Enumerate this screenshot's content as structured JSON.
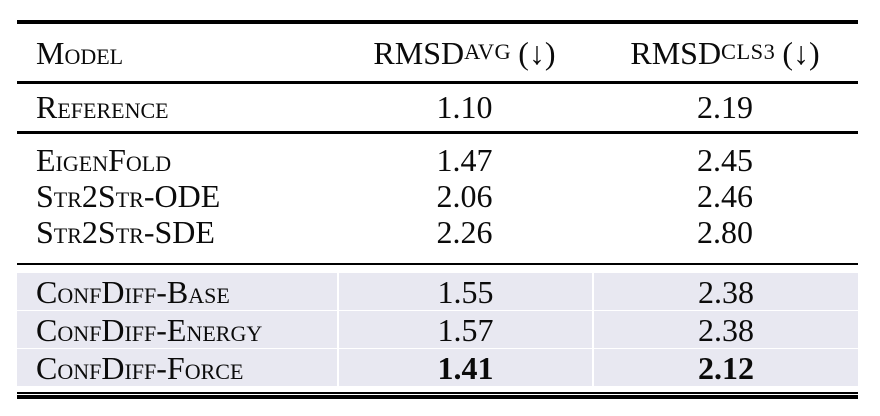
{
  "page": {
    "background_color": "#ffffff",
    "highlight_row_color": "#e8e8f1",
    "rule_color": "#000000"
  },
  "table": {
    "header": {
      "model": "Model",
      "col2": {
        "main": "RMSD",
        "sub": "AVG",
        "suffix": "(↓)"
      },
      "col3": {
        "main": "RMSD",
        "sub": "CLS3",
        "suffix": "(↓)"
      }
    },
    "sections": [
      {
        "id": "reference",
        "highlighted": false,
        "rows": [
          {
            "model": "Reference",
            "values": [
              "1.10",
              "2.19"
            ],
            "bold_values": false
          }
        ]
      },
      {
        "id": "baselines",
        "highlighted": false,
        "rows": [
          {
            "model": "EigenFold",
            "values": [
              "1.47",
              "2.45"
            ],
            "bold_values": false
          },
          {
            "model": "Str2Str-ODE",
            "values": [
              "2.06",
              "2.46"
            ],
            "bold_values": false
          },
          {
            "model": "Str2Str-SDE",
            "values": [
              "2.26",
              "2.80"
            ],
            "bold_values": false
          }
        ]
      },
      {
        "id": "confdiff",
        "highlighted": true,
        "rows": [
          {
            "model": "ConfDiff-Base",
            "values": [
              "1.55",
              "2.38"
            ],
            "bold_values": false
          },
          {
            "model": "ConfDiff-Energy",
            "values": [
              "1.57",
              "2.38"
            ],
            "bold_values": false
          },
          {
            "model": "ConfDiff-Force",
            "values": [
              "1.41",
              "2.12"
            ],
            "bold_values": true
          }
        ]
      }
    ]
  }
}
